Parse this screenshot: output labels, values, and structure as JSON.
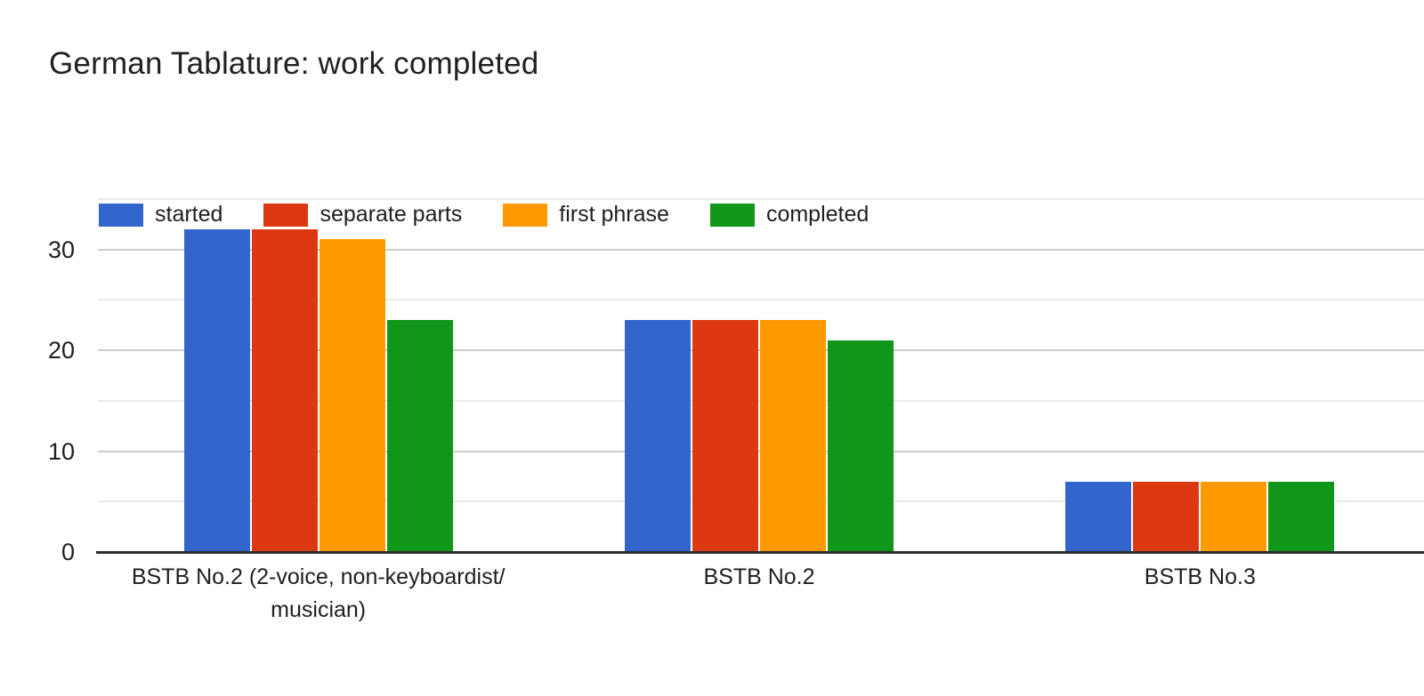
{
  "title": "German Tablature: work completed",
  "chart_data": {
    "type": "bar",
    "title": "German Tablature: work completed",
    "categories": [
      "BSTB No.2 (2-voice, non-keyboardist/ musician)",
      "BSTB No.2",
      "BSTB No.3"
    ],
    "series": [
      {
        "name": "started",
        "color": "#3366CC",
        "values": [
          32,
          23,
          7
        ]
      },
      {
        "name": "separate parts",
        "color": "#DC3912",
        "values": [
          32,
          23,
          7
        ]
      },
      {
        "name": "first phrase",
        "color": "#FF9900",
        "values": [
          31,
          23,
          7
        ]
      },
      {
        "name": "completed",
        "color": "#109618",
        "values": [
          23,
          21,
          7
        ]
      }
    ],
    "ylim": [
      0,
      35
    ],
    "yticks": [
      0,
      10,
      20,
      30
    ],
    "minor_gridlines": [
      5,
      15,
      25,
      35
    ],
    "grid": true,
    "legend_position": "top",
    "xlabel": "",
    "ylabel": "",
    "colors": {
      "major_grid": "#cccccc",
      "minor_grid": "#ebebeb",
      "baseline": "#2e2e2e",
      "text": "#1f1f1f",
      "title_text": "#202124",
      "background": "#ffffff"
    }
  }
}
